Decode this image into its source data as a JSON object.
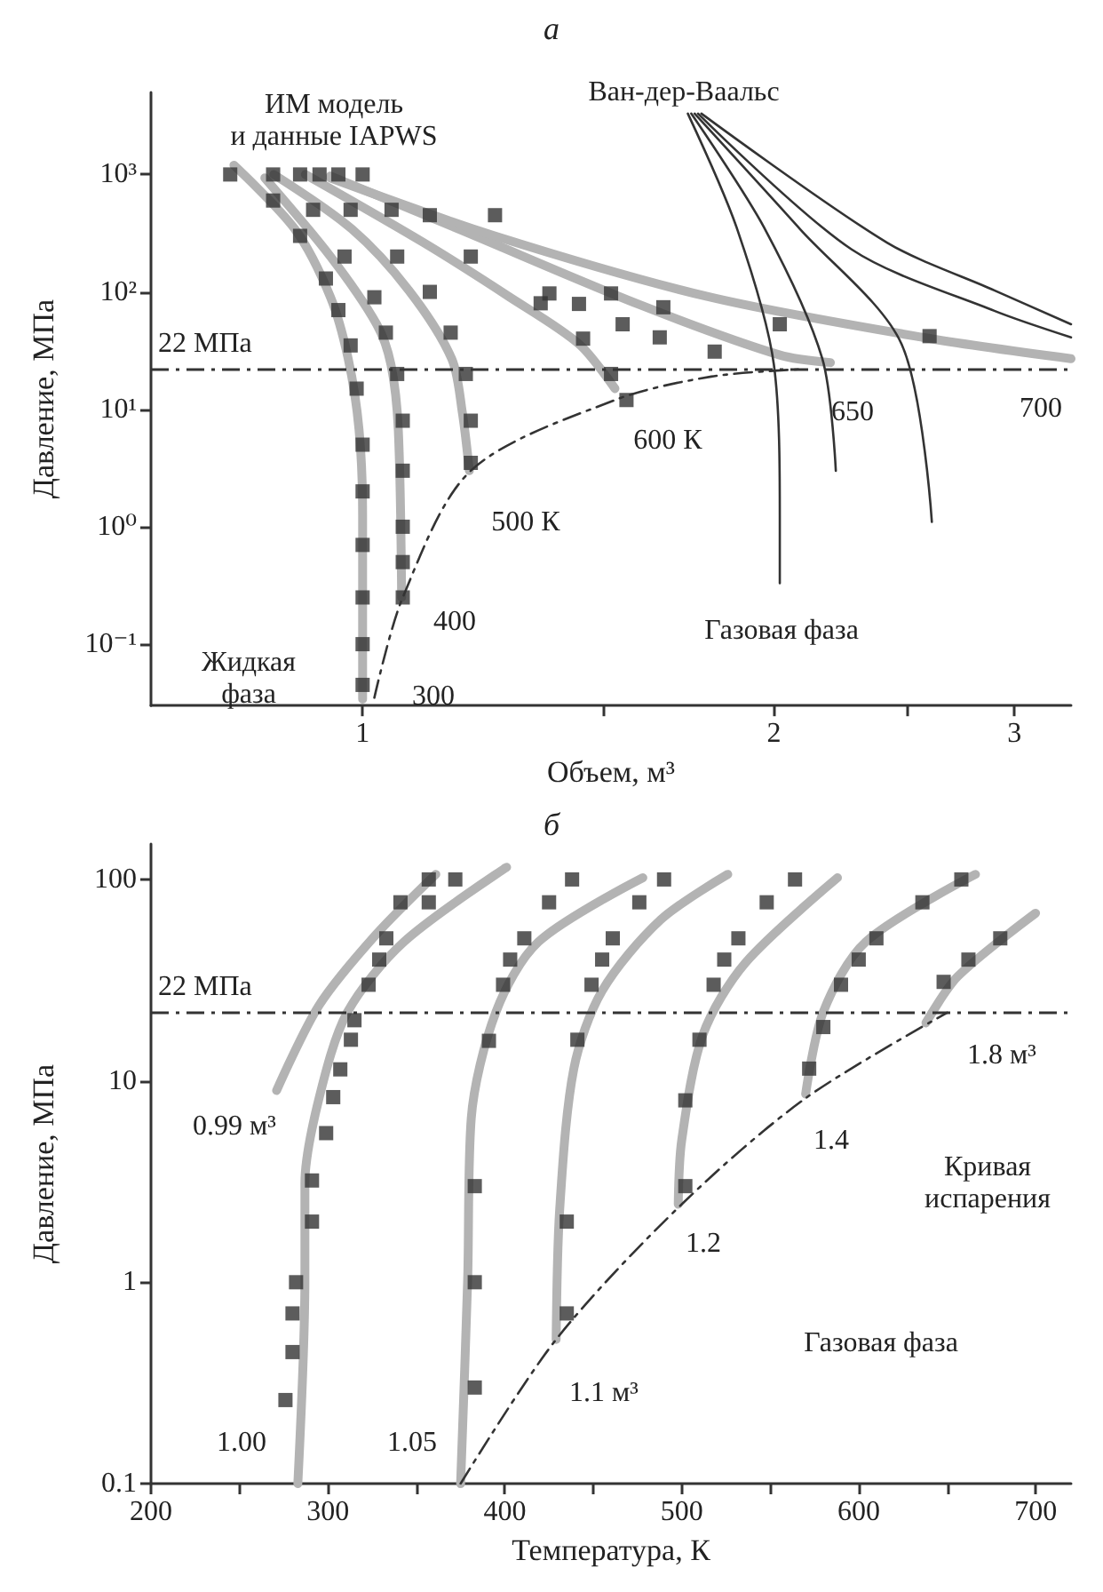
{
  "chart_data": [
    {
      "type": "line",
      "title": "а",
      "xlabel": "Объем, м³",
      "ylabel": "Давление, МПа",
      "log": "xy",
      "xlim": [
        0.7,
        3.3
      ],
      "xticks": [
        1,
        {
          "value": 1.5,
          "label": null
        },
        2,
        {
          "value": 2.5,
          "label": null
        },
        3
      ],
      "ylim": [
        0.03,
        5000
      ],
      "yticks": [
        {
          "value": 0.1,
          "label": "10⁻¹"
        },
        {
          "value": 1,
          "label": "10⁰"
        },
        {
          "value": 10,
          "label": "10¹"
        },
        {
          "value": 100,
          "label": "10²"
        },
        {
          "value": 1000,
          "label": "10³"
        }
      ],
      "series": [
        {
          "color": "#b3b3b3",
          "marker": "none",
          "x": [
            0.805,
            0.892,
            0.947,
            0.976,
            0.994,
            1.0,
            1.0
          ],
          "values": [
            1200,
            343,
            91,
            27,
            6.7,
            1.26,
            0.034
          ]
        },
        {
          "color": "#b3b3b3",
          "marker": "none",
          "x": [
            0.848,
            0.947,
            1.024,
            1.049,
            1.062,
            1.068
          ],
          "values": [
            935,
            201,
            53,
            24,
            6.7,
            0.25
          ]
        },
        {
          "color": "#b3b3b3",
          "marker": "none",
          "x": [
            0.861,
            0.982,
            1.081,
            1.162,
            1.183,
            1.197
          ],
          "values": [
            1000,
            343,
            103,
            27,
            9.4,
            3.0
          ]
        },
        {
          "color": "#b3b3b3",
          "marker": "none",
          "x": [
            0.908,
            1.108,
            1.28,
            1.44,
            1.53
          ],
          "values": [
            1000,
            263,
            91,
            36,
            15
          ]
        },
        {
          "color": "#b3b3b3",
          "marker": "none",
          "x": [
            0.947,
            1.176,
            1.59,
            2.02,
            2.2
          ],
          "values": [
            970,
            343,
            79,
            29,
            25
          ]
        },
        {
          "color": "#b3b3b3",
          "marker": "none",
          "x": [
            0.947,
            1.249,
            1.79,
            2.57,
            3.3
          ],
          "values": [
            935,
            300,
            91,
            41,
            27
          ]
        },
        {
          "color": "#333333",
          "marker": "none",
          "x": [
            1.73,
            1.88,
            2.0,
            2.02,
            2.02
          ],
          "values": [
            3300,
            343,
            24,
            1.26,
            0.33
          ]
        },
        {
          "color": "#333333",
          "marker": "none",
          "x": [
            1.74,
            1.97,
            2.17,
            2.22
          ],
          "values": [
            3300,
            343,
            27,
            3.0
          ]
        },
        {
          "color": "#333333",
          "marker": "none",
          "x": [
            1.75,
            2.09,
            2.48,
            2.61
          ],
          "values": [
            3300,
            343,
            36,
            1.1
          ]
        },
        {
          "color": "#333333",
          "marker": "none",
          "x": [
            1.76,
            2.28,
            2.9,
            3.3
          ],
          "values": [
            3300,
            230,
            69,
            41
          ]
        },
        {
          "color": "#333333",
          "marker": "none",
          "x": [
            1.77,
            2.42,
            2.9,
            3.3
          ],
          "values": [
            3300,
            263,
            103,
            53
          ]
        },
        {
          "color": "#333333",
          "marker": "none",
          "line_style": "dashed",
          "x": [
            1.02,
            1.07,
            1.2,
            1.53,
            1.8,
            2.1
          ],
          "values": [
            0.035,
            0.25,
            3,
            12,
            19,
            22
          ]
        },
        {
          "type": "scatter",
          "color": "#333333",
          "marker": "square",
          "x": [
            0.8,
            0.86,
            0.9,
            0.94,
            0.96,
            0.98,
            0.99,
            1.0,
            1.0,
            1.0,
            1.0,
            1.0,
            1.0,
            0.86,
            0.92,
            0.97,
            1.02,
            1.04,
            1.06,
            1.07,
            1.07,
            1.07,
            1.07,
            1.07,
            0.9,
            0.98,
            1.06,
            1.12,
            1.16,
            1.19,
            1.2,
            1.2,
            0.93,
            1.05,
            1.2,
            1.35,
            1.45,
            1.52,
            1.56,
            0.96,
            1.12,
            1.37,
            1.44,
            1.52,
            1.55,
            1.65,
            1.81,
            2.02,
            1.0,
            1.25,
            1.66,
            2.6
          ],
          "values": [
            1000,
            600,
            300,
            130,
            70,
            35,
            15,
            5,
            2,
            0.7,
            0.25,
            0.1,
            0.045,
            1000,
            500,
            200,
            90,
            45,
            20,
            8,
            3,
            1,
            0.5,
            0.25,
            1000,
            500,
            200,
            100,
            45,
            20,
            8,
            3.5,
            1000,
            500,
            200,
            80,
            40,
            20,
            12,
            1000,
            450,
            97,
            79,
            97,
            53,
            41,
            31,
            53,
            1000,
            450,
            74,
            42
          ]
        }
      ],
      "ref_lines": [
        {
          "axis": "y",
          "value": 22,
          "label": "22 МПа",
          "color": "#333333",
          "line_style": "dashed"
        }
      ],
      "annotations": [
        "ИМ модель\nи данные IAPWS",
        "Ван-дер-Ваальс",
        "Жидкая\nфаза",
        "Газовая фаза",
        "300",
        "400",
        "500 К",
        "600 К",
        "650",
        "700"
      ]
    },
    {
      "type": "line",
      "title": "б",
      "xlabel": "Температура, К",
      "ylabel": "Давление, МПа",
      "log": "y",
      "xlim": [
        200,
        720
      ],
      "xticks": [
        200,
        {
          "value": 250,
          "label": null
        },
        300,
        {
          "value": 350,
          "label": null
        },
        400,
        {
          "value": 450,
          "label": null
        },
        500,
        {
          "value": 550,
          "label": null
        },
        600,
        {
          "value": 650,
          "label": null
        },
        700
      ],
      "ylim": [
        0.1,
        150
      ],
      "yticks": [
        0.1,
        1,
        10,
        100
      ],
      "series": [
        {
          "color": "#b3b3b3",
          "marker": "none",
          "x": [
            271,
            295,
            327,
            361
          ],
          "values": [
            8.95,
            23.7,
            53,
            106
          ]
        },
        {
          "color": "#b3b3b3",
          "marker": "none",
          "x": [
            283,
            287,
            287,
            295,
            311,
            343,
            401
          ],
          "values": [
            0.1,
            1.04,
            3.1,
            8.2,
            21.9,
            49,
            115
          ]
        },
        {
          "color": "#b3b3b3",
          "marker": "none",
          "x": [
            375,
            379,
            381,
            395,
            419,
            478
          ],
          "values": [
            0.1,
            1.04,
            6.5,
            22,
            49,
            102
          ]
        },
        {
          "color": "#b3b3b3",
          "marker": "none",
          "x": [
            429,
            431,
            439,
            455,
            488,
            526
          ],
          "values": [
            0.52,
            2.3,
            11.5,
            28,
            63,
            106
          ]
        },
        {
          "color": "#b3b3b3",
          "marker": "none",
          "x": [
            498,
            500,
            512,
            536,
            588
          ],
          "values": [
            2.44,
            5.1,
            17,
            38.6,
            102
          ]
        },
        {
          "color": "#b3b3b3",
          "marker": "none",
          "x": [
            570,
            580,
            604,
            666
          ],
          "values": [
            8.6,
            22,
            49,
            106
          ]
        },
        {
          "color": "#b3b3b3",
          "marker": "none",
          "x": [
            638,
            656,
            700
          ],
          "values": [
            19.4,
            33,
            68
          ]
        },
        {
          "color": "#333333",
          "marker": "none",
          "line_style": "dashed",
          "x": [
            375,
            429,
            500,
            570,
            650
          ],
          "values": [
            0.1,
            0.52,
            2.44,
            8.2,
            21.8
          ]
        },
        {
          "type": "scatter",
          "color": "#333333",
          "marker": "square",
          "x": [
            276,
            280,
            280,
            282,
            291,
            291,
            299,
            303,
            307,
            313,
            315,
            323,
            329,
            333,
            341,
            357,
            372,
            357,
            383,
            383,
            383,
            391,
            399,
            403,
            411,
            425,
            438,
            435,
            435,
            441,
            449,
            455,
            461,
            476,
            490,
            502,
            502,
            510,
            518,
            524,
            532,
            548,
            564,
            572,
            580,
            590,
            600,
            610,
            636,
            658,
            648,
            662,
            680
          ],
          "values": [
            0.26,
            0.45,
            0.7,
            1.0,
            2.0,
            3.2,
            5.5,
            8.3,
            11.4,
            16,
            20,
            30,
            40,
            51,
            77,
            100,
            100,
            77,
            0.3,
            1,
            3,
            15.8,
            30,
            40,
            51,
            77,
            100,
            0.7,
            2,
            16,
            30,
            40,
            51,
            77,
            100,
            3,
            8,
            16,
            30,
            40,
            51,
            77,
            100,
            11.5,
            18.5,
            30,
            40,
            51,
            77,
            100,
            31,
            40,
            51
          ]
        }
      ],
      "ref_lines": [
        {
          "axis": "y",
          "value": 22,
          "label": "22 МПа",
          "color": "#333333",
          "line_style": "dashed"
        }
      ],
      "annotations": [
        "0.99 м³",
        "1.00",
        "1.05",
        "1.1 м³",
        "1.2",
        "1.4",
        "1.8 м³",
        "Кривая\nиспарения",
        "Газовая фаза"
      ]
    }
  ]
}
